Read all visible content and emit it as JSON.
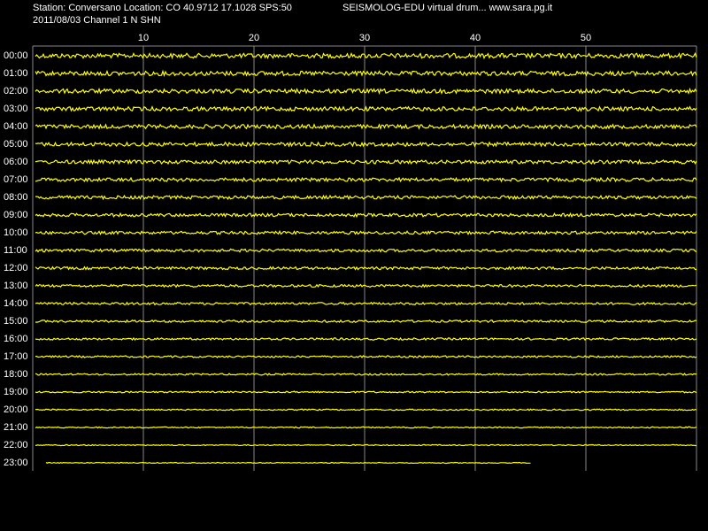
{
  "chart_data": {
    "type": "drum",
    "title": "Station: Conversano Location: CO 40.9712 17.1028 SPS:50",
    "subtitle": "SEISMOLOG-EDU virtual drum... www.sara.pg.it",
    "date_channel": "2011/08/03  Channel 1 N SHN",
    "xlim": [
      0,
      60
    ],
    "xticks": [
      10,
      20,
      30,
      40,
      50
    ],
    "categories": [
      "00:00",
      "01:00",
      "02:00",
      "03:00",
      "04:00",
      "05:00",
      "06:00",
      "07:00",
      "08:00",
      "09:00",
      "10:00",
      "11:00",
      "12:00",
      "13:00",
      "14:00",
      "15:00",
      "16:00",
      "17:00",
      "18:00",
      "19:00",
      "20:00",
      "21:00",
      "22:00",
      "23:00"
    ],
    "last_trace_end_minute": 45,
    "color": "#ffff00",
    "grid": true
  }
}
